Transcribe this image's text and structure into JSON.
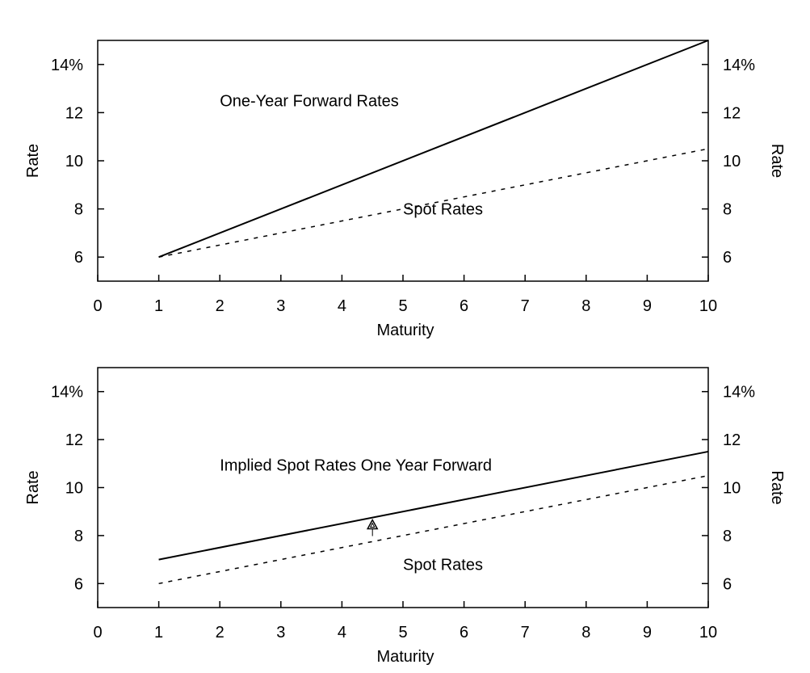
{
  "chart_data": [
    {
      "type": "line",
      "x_ticks": [
        "0",
        "1",
        "2",
        "3",
        "4",
        "5",
        "6",
        "7",
        "8",
        "9",
        "10"
      ],
      "y_ticks": [
        "6",
        "8",
        "10",
        "12",
        "14%"
      ],
      "y_tick_values": [
        6,
        8,
        10,
        12,
        14
      ],
      "xlabel": "Maturity",
      "ylabel_left": "Rate",
      "ylabel_right": "Rate",
      "xlim": [
        0,
        10
      ],
      "ylim": [
        5,
        15
      ],
      "grid": false,
      "series": [
        {
          "name": "One-Year Forward Rates",
          "style": "solid",
          "color": "#000000",
          "x": [
            1,
            10
          ],
          "y": [
            6,
            15
          ]
        },
        {
          "name": "Spot Rates",
          "style": "dashed",
          "color": "#000000",
          "x": [
            1,
            10
          ],
          "y": [
            6,
            10.5
          ]
        }
      ],
      "annotations": [
        {
          "text": "One-Year Forward Rates",
          "x": 2.0,
          "y": 12.5,
          "anchor": "start"
        },
        {
          "text": "Spot Rates",
          "x": 5.0,
          "y": 8.0,
          "anchor": "start"
        }
      ],
      "markers": []
    },
    {
      "type": "line",
      "x_ticks": [
        "0",
        "1",
        "2",
        "3",
        "4",
        "5",
        "6",
        "7",
        "8",
        "9",
        "10"
      ],
      "y_ticks": [
        "6",
        "8",
        "10",
        "12",
        "14%"
      ],
      "y_tick_values": [
        6,
        8,
        10,
        12,
        14
      ],
      "xlabel": "Maturity",
      "ylabel_left": "Rate",
      "ylabel_right": "Rate",
      "xlim": [
        0,
        10
      ],
      "ylim": [
        5,
        15
      ],
      "grid": false,
      "series": [
        {
          "name": "Implied Spot Rates One Year Forward",
          "style": "solid",
          "color": "#000000",
          "x": [
            1,
            10
          ],
          "y": [
            7,
            11.5
          ]
        },
        {
          "name": "Spot Rates",
          "style": "dashed",
          "color": "#000000",
          "x": [
            1,
            10
          ],
          "y": [
            6,
            10.5
          ]
        }
      ],
      "annotations": [
        {
          "text": "Implied Spot Rates One Year Forward",
          "x": 2.0,
          "y": 10.95,
          "anchor": "start"
        },
        {
          "text": "Spot Rates",
          "x": 5.0,
          "y": 6.8,
          "anchor": "start"
        }
      ],
      "markers": [
        {
          "shape": "triangle",
          "x": 4.5,
          "y": 8.45
        }
      ]
    }
  ]
}
